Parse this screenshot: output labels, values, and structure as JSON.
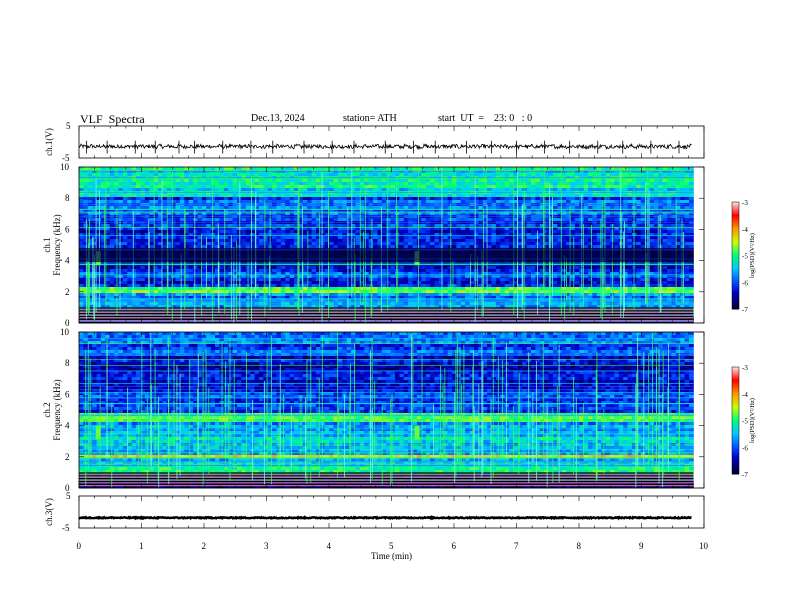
{
  "header": {
    "title": "VLF  Spectra",
    "date": "Dec.13, 2024",
    "station": "station= ATH",
    "start": "start  UT  =    23: 0   : 0"
  },
  "chart_data": [
    {
      "type": "line",
      "panel": "ch1-waveform",
      "ylabel": "ch.1(V)",
      "ylim": [
        -5,
        5
      ],
      "yticks": [
        "5",
        "-5"
      ],
      "xlim": [
        0,
        10
      ],
      "baseline_v": -1.4,
      "noise_amplitude_v": 0.6,
      "spike_times_min": [
        0.12,
        0.45,
        0.9,
        1.22,
        1.6,
        1.85,
        2.3,
        2.75,
        3.1,
        3.6,
        4.05,
        4.4,
        4.9,
        5.35,
        5.7,
        6.2,
        6.6,
        7.0,
        7.45,
        7.85,
        8.3,
        8.7,
        9.15,
        9.6
      ]
    },
    {
      "type": "heatmap",
      "panel": "ch1-spectrogram",
      "ylabel": "ch.1\nFrequency  (kHz)",
      "ylim": [
        0,
        10
      ],
      "yticks": [
        "0",
        "2",
        "4",
        "6",
        "8",
        "10"
      ],
      "xlim": [
        0,
        10
      ],
      "colorbar": {
        "label": "log(PSD)(V²/Hz)",
        "ticks": [
          "-3",
          "-4",
          "-5",
          "-6",
          "-7"
        ],
        "range": [
          -7,
          -3
        ]
      },
      "psd_bands": [
        {
          "freq_khz": [
            0.0,
            0.3
          ],
          "log_psd": -7.0
        },
        {
          "freq_khz": [
            0.3,
            1.0
          ],
          "log_psd": -5.2
        },
        {
          "freq_khz": [
            1.0,
            1.9
          ],
          "log_psd": -5.8
        },
        {
          "freq_khz": [
            1.9,
            2.3
          ],
          "log_psd": -4.9
        },
        {
          "freq_khz": [
            2.3,
            3.6
          ],
          "log_psd": -6.2
        },
        {
          "freq_khz": [
            3.6,
            4.8
          ],
          "log_psd": -6.8
        },
        {
          "freq_khz": [
            4.8,
            6.6
          ],
          "log_psd": -6.2
        },
        {
          "freq_khz": [
            6.6,
            8.0
          ],
          "log_psd": -6.0
        },
        {
          "freq_khz": [
            8.0,
            10.0
          ],
          "log_psd": -5.3
        }
      ]
    },
    {
      "type": "heatmap",
      "panel": "ch2-spectrogram",
      "ylabel": "ch.2\nFrequency  (kHz)",
      "ylim": [
        0,
        10
      ],
      "yticks": [
        "0",
        "2",
        "4",
        "6",
        "8",
        "10"
      ],
      "xlim": [
        0,
        10
      ],
      "colorbar": {
        "label": "log(PSD)(V²/Hz)",
        "ticks": [
          "-3",
          "-4",
          "-5",
          "-6",
          "-7"
        ],
        "range": [
          -7,
          -3
        ]
      },
      "psd_bands": [
        {
          "freq_khz": [
            0.0,
            0.3
          ],
          "log_psd": -7.0
        },
        {
          "freq_khz": [
            0.3,
            1.5
          ],
          "log_psd": -5.0
        },
        {
          "freq_khz": [
            1.5,
            1.9
          ],
          "log_psd": -5.4
        },
        {
          "freq_khz": [
            1.9,
            2.2
          ],
          "log_psd": -4.2
        },
        {
          "freq_khz": [
            2.2,
            3.5
          ],
          "log_psd": -5.4
        },
        {
          "freq_khz": [
            3.5,
            4.3
          ],
          "log_psd": -5.6
        },
        {
          "freq_khz": [
            4.3,
            4.8
          ],
          "log_psd": -4.9
        },
        {
          "freq_khz": [
            4.8,
            6.5
          ],
          "log_psd": -6.2
        },
        {
          "freq_khz": [
            6.5,
            8.5
          ],
          "log_psd": -6.4
        },
        {
          "freq_khz": [
            8.5,
            10.0
          ],
          "log_psd": -6.0
        }
      ]
    },
    {
      "type": "line",
      "panel": "ch3-waveform",
      "ylabel": "ch.3(V)",
      "ylim": [
        -5,
        5
      ],
      "yticks": [
        "5",
        "-5"
      ],
      "xlim": [
        0,
        10
      ],
      "baseline_v": -1.8,
      "xlabel": "Time  (min)",
      "xticks": [
        "0",
        "1",
        "2",
        "3",
        "4",
        "5",
        "6",
        "7",
        "8",
        "9",
        "10"
      ]
    }
  ],
  "colors": {
    "colormap": [
      "#ffffff",
      "#ff0000",
      "#ffff00",
      "#00ff00",
      "#00ffff",
      "#0000ff",
      "#000044"
    ]
  }
}
